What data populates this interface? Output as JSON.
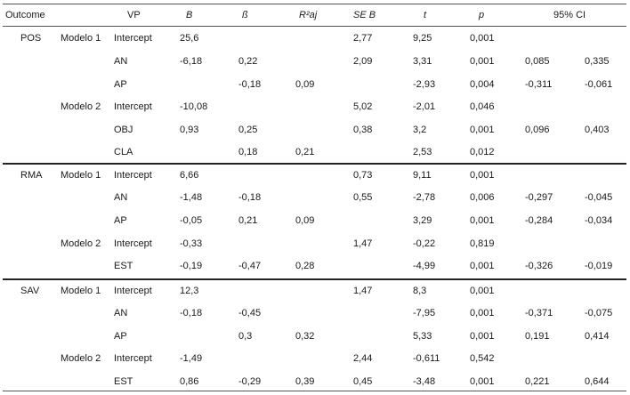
{
  "headers": {
    "outcome": "Outcome",
    "vp": "VP",
    "b": "B",
    "beta": "ß",
    "r2aj": "R²aj",
    "seb": "SE B",
    "t": "t",
    "p": "p",
    "ci": "95% CI"
  },
  "rows": [
    {
      "outcome": "POS",
      "model": "Modelo 1",
      "vp": "Intercept",
      "b": "25,6",
      "beta": "",
      "r2": "",
      "seb": "2,77",
      "t": "9,25",
      "p": "0,001",
      "ci_lo": "",
      "ci_hi": ""
    },
    {
      "outcome": "",
      "model": "",
      "vp": "AN",
      "b": "-6,18",
      "beta": "0,22",
      "r2": "",
      "seb": "2,09",
      "t": "3,31",
      "p": "0,001",
      "ci_lo": "0,085",
      "ci_hi": "0,335"
    },
    {
      "outcome": "",
      "model": "",
      "vp": "AP",
      "b": "",
      "beta": "-0,18",
      "r2": "0,09",
      "seb": "",
      "t": "-2,93",
      "p": "0,004",
      "ci_lo": "-0,311",
      "ci_hi": "-0,061"
    },
    {
      "outcome": "",
      "model": "Modelo 2",
      "vp": "Intercept",
      "b": "-10,08",
      "beta": "",
      "r2": "",
      "seb": "5,02",
      "t": "-2,01",
      "p": "0,046",
      "ci_lo": "",
      "ci_hi": ""
    },
    {
      "outcome": "",
      "model": "",
      "vp": "OBJ",
      "b": "0,93",
      "beta": "0,25",
      "r2": "",
      "seb": "0,38",
      "t": "3,2",
      "p": "0,001",
      "ci_lo": "0,096",
      "ci_hi": "0,403"
    },
    {
      "outcome": "",
      "model": "",
      "vp": "CLA",
      "b": "",
      "beta": "0,18",
      "r2": "0,21",
      "seb": "",
      "t": "2,53",
      "p": "0,012",
      "ci_lo": "",
      "ci_hi": ""
    },
    {
      "outcome": "RMA",
      "model": "Modelo 1",
      "vp": "Intercept",
      "b": "6,66",
      "beta": "",
      "r2": "",
      "seb": "0,73",
      "t": "9,11",
      "p": "0,001",
      "ci_lo": "",
      "ci_hi": ""
    },
    {
      "outcome": "",
      "model": "",
      "vp": "AN",
      "b": "-1,48",
      "beta": "-0,18",
      "r2": "",
      "seb": "0,55",
      "t": "-2,78",
      "p": "0,006",
      "ci_lo": "-0,297",
      "ci_hi": "-0,045"
    },
    {
      "outcome": "",
      "model": "",
      "vp": "AP",
      "b": "-0,05",
      "beta": "0,21",
      "r2": "0,09",
      "seb": "",
      "t": "3,29",
      "p": "0,001",
      "ci_lo": "-0,284",
      "ci_hi": "-0,034"
    },
    {
      "outcome": "",
      "model": "Modelo 2",
      "vp": "Intercept",
      "b": "-0,33",
      "beta": "",
      "r2": "",
      "seb": "1,47",
      "t": "-0,22",
      "p": "0,819",
      "ci_lo": "",
      "ci_hi": ""
    },
    {
      "outcome": "",
      "model": "",
      "vp": "EST",
      "b": "-0,19",
      "beta": "-0,47",
      "r2": "0,28",
      "seb": "",
      "t": "-4,99",
      "p": "0,001",
      "ci_lo": "-0,326",
      "ci_hi": "-0,019"
    },
    {
      "outcome": "SAV",
      "model": "Modelo 1",
      "vp": "Intercept",
      "b": "12,3",
      "beta": "",
      "r2": "",
      "seb": "1,47",
      "t": "8,3",
      "p": "0,001",
      "ci_lo": "",
      "ci_hi": ""
    },
    {
      "outcome": "",
      "model": "",
      "vp": "AN",
      "b": "-0,18",
      "beta": "-0,45",
      "r2": "",
      "seb": "",
      "t": "-7,95",
      "p": "0,001",
      "ci_lo": "-0,371",
      "ci_hi": "-0,075"
    },
    {
      "outcome": "",
      "model": "",
      "vp": "AP",
      "b": "",
      "beta": "0,3",
      "r2": "0,32",
      "seb": "",
      "t": "5,33",
      "p": "0,001",
      "ci_lo": "0,191",
      "ci_hi": "0,414"
    },
    {
      "outcome": "",
      "model": "Modelo 2",
      "vp": "Intercept",
      "b": "-1,49",
      "beta": "",
      "r2": "",
      "seb": "2,44",
      "t": "-0,611",
      "p": "0,542",
      "ci_lo": "",
      "ci_hi": ""
    },
    {
      "outcome": "",
      "model": "",
      "vp": "EST",
      "b": "0,86",
      "beta": "-0,29",
      "r2": "0,39",
      "seb": "0,45",
      "t": "-3,48",
      "p": "0,001",
      "ci_lo": "0,221",
      "ci_hi": "0,644"
    }
  ]
}
